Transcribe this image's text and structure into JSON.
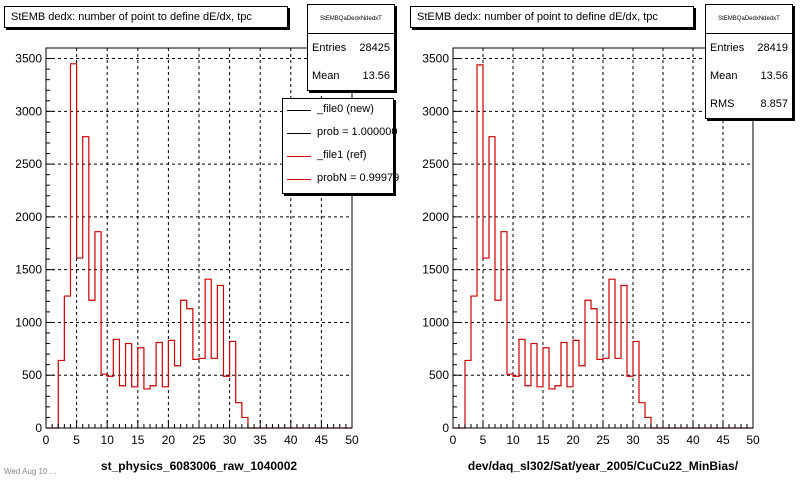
{
  "colors": {
    "reference": "#cc0000",
    "new": "#000000",
    "grid": "#000000",
    "frame": "#000000"
  },
  "panels": [
    {
      "title": "StEMB dedx: number of point to define dE/dx, tpc",
      "stats": {
        "name": "StEMBQaDedxNdedxT",
        "rows": [
          {
            "label": "Entries",
            "value": "28425"
          },
          {
            "label": "Mean",
            "value": "13.56"
          }
        ]
      },
      "legend": [
        {
          "label": "_file0 (new)",
          "color": "#000000"
        },
        {
          "label": "prob = 1.000000",
          "color": "#000000"
        },
        {
          "label": "_file1 (ref)",
          "color": "#cc0000"
        },
        {
          "label": "probN = 0.99979",
          "color": "#cc0000"
        }
      ]
    },
    {
      "title": "StEMB dedx: number of point to define dE/dx, tpc",
      "stats": {
        "name": "StEMBQaDedxNdedxT",
        "rows": [
          {
            "label": "Entries",
            "value": "28419"
          },
          {
            "label": "Mean",
            "value": "13.56"
          },
          {
            "label": "RMS",
            "value": "8.857"
          }
        ]
      }
    }
  ],
  "footer": "Wed Aug 10 ...",
  "chart_data": [
    {
      "type": "histogram",
      "title": "StEMB dedx: number of point to define dE/dx, tpc",
      "xlabel": "st_physics_6083006_raw_1040002",
      "ylabel": "",
      "xlim": [
        0,
        50
      ],
      "ylim": [
        0,
        3600
      ],
      "xticks": [
        0,
        5,
        10,
        15,
        20,
        25,
        30,
        35,
        40,
        45,
        50
      ],
      "yticks": [
        0,
        500,
        1000,
        1500,
        2000,
        2500,
        3000,
        3500
      ],
      "grid": true,
      "bin_width": 1,
      "series": [
        {
          "name": "_file1 (ref)",
          "color": "#cc0000",
          "bin_edges_start": 0,
          "values": [
            0,
            0,
            640,
            1250,
            3450,
            1610,
            2760,
            1210,
            1860,
            510,
            490,
            840,
            400,
            800,
            390,
            760,
            370,
            400,
            810,
            390,
            830,
            590,
            1210,
            1130,
            650,
            660,
            1410,
            660,
            1350,
            490,
            820,
            240,
            100,
            0,
            0,
            0,
            0,
            0,
            0,
            0,
            0,
            0,
            0,
            0,
            0,
            0,
            0,
            0,
            0,
            0
          ]
        }
      ]
    },
    {
      "type": "histogram",
      "title": "StEMB dedx: number of point to define dE/dx, tpc",
      "xlabel": "dev/daq_sl302/Sat/year_2005/CuCu22_MinBias/",
      "ylabel": "",
      "xlim": [
        0,
        50
      ],
      "ylim": [
        0,
        3600
      ],
      "xticks": [
        0,
        5,
        10,
        15,
        20,
        25,
        30,
        35,
        40,
        45,
        50
      ],
      "yticks": [
        0,
        500,
        1000,
        1500,
        2000,
        2500,
        3000,
        3500
      ],
      "grid": true,
      "bin_width": 1,
      "series": [
        {
          "name": "",
          "color": "#cc0000",
          "bin_edges_start": 0,
          "values": [
            0,
            0,
            640,
            1250,
            3440,
            1610,
            2760,
            1210,
            1860,
            510,
            490,
            840,
            400,
            800,
            390,
            760,
            370,
            400,
            810,
            390,
            830,
            590,
            1210,
            1130,
            650,
            660,
            1410,
            660,
            1350,
            490,
            820,
            240,
            100,
            0,
            0,
            0,
            0,
            0,
            0,
            0,
            0,
            0,
            0,
            0,
            0,
            0,
            0,
            0,
            0,
            0
          ]
        }
      ]
    }
  ]
}
